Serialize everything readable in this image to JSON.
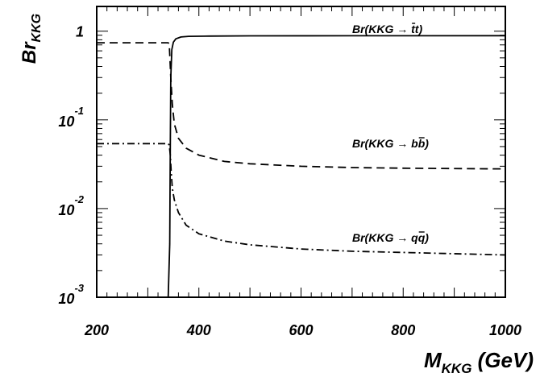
{
  "chart_data": {
    "type": "line",
    "ylabel": {
      "main": "Br",
      "sub": "KKG"
    },
    "xlabel": {
      "main": "M",
      "sub": "KKG",
      "unit": " (GeV)"
    },
    "xlim": [
      200,
      1000
    ],
    "ylim": [
      0.001,
      1.9
    ],
    "yscale": "log",
    "x_ticks": [
      "200",
      "400",
      "600",
      "800",
      "1000"
    ],
    "y_ticks": [
      {
        "base": "10",
        "exp": "-3"
      },
      {
        "base": "10",
        "exp": "-2"
      },
      {
        "base": "10",
        "exp": "-1"
      },
      {
        "base": "1",
        "exp": ""
      }
    ],
    "series": [
      {
        "label": {
          "pre": "Br(KKG → ",
          "post": ")",
          "q1": "t",
          "q2": "t",
          "bar": 1
        },
        "style": "solid",
        "points": [
          [
            340,
            0.001
          ],
          [
            343,
            0.004
          ],
          [
            344,
            0.05
          ],
          [
            345,
            0.3
          ],
          [
            347,
            0.62
          ],
          [
            350,
            0.75
          ],
          [
            355,
            0.82
          ],
          [
            365,
            0.86
          ],
          [
            380,
            0.875
          ],
          [
            420,
            0.88
          ],
          [
            500,
            0.885
          ],
          [
            700,
            0.888
          ],
          [
            1000,
            0.89
          ]
        ]
      },
      {
        "label": {
          "pre": "Br(KKG → ",
          "post": ")",
          "q1": "b",
          "q2": "b",
          "bar": 2
        },
        "style": "dashed",
        "points": [
          [
            200,
            0.74
          ],
          [
            340,
            0.74
          ],
          [
            342,
            0.72
          ],
          [
            343,
            0.55
          ],
          [
            345,
            0.3
          ],
          [
            348,
            0.15
          ],
          [
            352,
            0.09
          ],
          [
            360,
            0.062
          ],
          [
            375,
            0.048
          ],
          [
            400,
            0.04
          ],
          [
            450,
            0.034
          ],
          [
            500,
            0.032
          ],
          [
            600,
            0.03
          ],
          [
            700,
            0.029
          ],
          [
            800,
            0.0285
          ],
          [
            1000,
            0.028
          ]
        ]
      },
      {
        "label": {
          "pre": "Br(KKG → ",
          "post": ")",
          "q1": "q",
          "q2": "q",
          "bar": 2
        },
        "style": "dashdot",
        "points": [
          [
            200,
            0.054
          ],
          [
            340,
            0.054
          ],
          [
            342,
            0.052
          ],
          [
            344,
            0.04
          ],
          [
            346,
            0.025
          ],
          [
            348,
            0.017
          ],
          [
            352,
            0.0125
          ],
          [
            360,
            0.009
          ],
          [
            375,
            0.0065
          ],
          [
            400,
            0.0052
          ],
          [
            450,
            0.0043
          ],
          [
            500,
            0.0039
          ],
          [
            600,
            0.0035
          ],
          [
            700,
            0.0033
          ],
          [
            800,
            0.0032
          ],
          [
            1000,
            0.003
          ]
        ]
      }
    ]
  }
}
